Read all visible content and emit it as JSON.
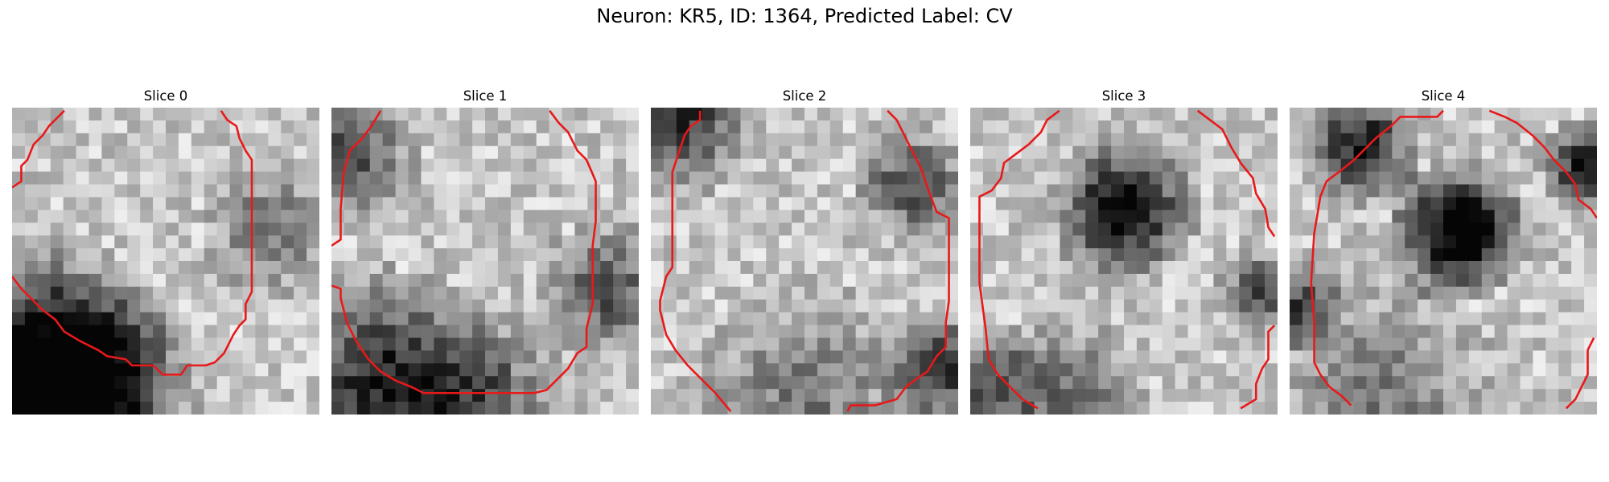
{
  "figure": {
    "title": "Neuron: KR5, ID: 1364, Predicted Label: CV"
  },
  "colors": {
    "contour": "#e8191a",
    "colormap": "grayscale"
  },
  "slices": [
    {
      "title": "Slice 0",
      "grid_size": 24,
      "seed": 11,
      "dark_regions": [
        [
          0.08,
          0.85,
          0.22,
          0.75
        ],
        [
          0.25,
          0.92,
          0.18,
          0.6
        ],
        [
          0.85,
          0.4,
          0.12,
          0.35
        ]
      ],
      "contour": [
        [
          [
            0.0,
            0.26
          ],
          [
            0.03,
            0.24
          ],
          [
            0.03,
            0.19
          ],
          [
            0.05,
            0.17
          ],
          [
            0.07,
            0.12
          ],
          [
            0.1,
            0.09
          ],
          [
            0.12,
            0.06
          ],
          [
            0.15,
            0.03
          ],
          [
            0.17,
            0.01
          ]
        ],
        [
          [
            0.68,
            0.01
          ],
          [
            0.7,
            0.04
          ],
          [
            0.73,
            0.06
          ],
          [
            0.74,
            0.1
          ],
          [
            0.76,
            0.14
          ],
          [
            0.78,
            0.17
          ],
          [
            0.78,
            0.26
          ],
          [
            0.78,
            0.6
          ],
          [
            0.76,
            0.64
          ],
          [
            0.76,
            0.69
          ],
          [
            0.74,
            0.71
          ],
          [
            0.72,
            0.74
          ],
          [
            0.69,
            0.8
          ],
          [
            0.66,
            0.83
          ],
          [
            0.63,
            0.84
          ],
          [
            0.57,
            0.84
          ],
          [
            0.55,
            0.87
          ],
          [
            0.49,
            0.87
          ],
          [
            0.46,
            0.84
          ],
          [
            0.39,
            0.84
          ],
          [
            0.37,
            0.82
          ],
          [
            0.31,
            0.81
          ],
          [
            0.28,
            0.79
          ],
          [
            0.22,
            0.76
          ],
          [
            0.17,
            0.73
          ],
          [
            0.14,
            0.69
          ],
          [
            0.1,
            0.66
          ],
          [
            0.06,
            0.62
          ],
          [
            0.03,
            0.59
          ],
          [
            0.0,
            0.55
          ]
        ]
      ]
    },
    {
      "title": "Slice 1",
      "grid_size": 24,
      "seed": 23,
      "dark_regions": [
        [
          0.05,
          0.15,
          0.12,
          0.5
        ],
        [
          0.2,
          0.92,
          0.2,
          0.7
        ],
        [
          0.9,
          0.6,
          0.12,
          0.45
        ],
        [
          0.55,
          0.95,
          0.15,
          0.3
        ]
      ],
      "contour": [
        [
          [
            0.0,
            0.45
          ],
          [
            0.03,
            0.43
          ],
          [
            0.03,
            0.33
          ],
          [
            0.04,
            0.21
          ],
          [
            0.06,
            0.14
          ],
          [
            0.1,
            0.1
          ],
          [
            0.13,
            0.06
          ],
          [
            0.16,
            0.01
          ]
        ],
        [
          [
            0.71,
            0.01
          ],
          [
            0.74,
            0.05
          ],
          [
            0.77,
            0.08
          ],
          [
            0.8,
            0.14
          ],
          [
            0.83,
            0.17
          ],
          [
            0.86,
            0.24
          ],
          [
            0.86,
            0.37
          ],
          [
            0.85,
            0.45
          ],
          [
            0.85,
            0.64
          ],
          [
            0.83,
            0.72
          ],
          [
            0.83,
            0.78
          ],
          [
            0.8,
            0.8
          ],
          [
            0.77,
            0.85
          ],
          [
            0.73,
            0.89
          ],
          [
            0.7,
            0.92
          ],
          [
            0.66,
            0.93
          ],
          [
            0.3,
            0.93
          ],
          [
            0.26,
            0.91
          ],
          [
            0.21,
            0.89
          ],
          [
            0.16,
            0.86
          ],
          [
            0.12,
            0.82
          ],
          [
            0.08,
            0.76
          ],
          [
            0.05,
            0.7
          ],
          [
            0.03,
            0.62
          ],
          [
            0.03,
            0.59
          ],
          [
            0.0,
            0.58
          ]
        ]
      ]
    },
    {
      "title": "Slice 2",
      "grid_size": 24,
      "seed": 37,
      "dark_regions": [
        [
          0.1,
          0.05,
          0.12,
          0.6
        ],
        [
          0.85,
          0.25,
          0.1,
          0.5
        ],
        [
          0.95,
          0.85,
          0.1,
          0.6
        ],
        [
          0.5,
          0.95,
          0.2,
          0.3
        ]
      ],
      "contour": [
        [
          [
            0.16,
            0.01
          ],
          [
            0.16,
            0.04
          ],
          [
            0.13,
            0.06
          ],
          [
            0.11,
            0.09
          ],
          [
            0.07,
            0.21
          ],
          [
            0.07,
            0.52
          ],
          [
            0.05,
            0.55
          ],
          [
            0.03,
            0.63
          ],
          [
            0.03,
            0.66
          ],
          [
            0.05,
            0.74
          ],
          [
            0.08,
            0.79
          ],
          [
            0.12,
            0.84
          ],
          [
            0.16,
            0.88
          ],
          [
            0.21,
            0.93
          ],
          [
            0.26,
            0.99
          ]
        ],
        [
          [
            0.77,
            0.01
          ],
          [
            0.8,
            0.04
          ],
          [
            0.82,
            0.08
          ],
          [
            0.85,
            0.14
          ],
          [
            0.88,
            0.2
          ],
          [
            0.9,
            0.26
          ],
          [
            0.93,
            0.34
          ],
          [
            0.97,
            0.36
          ],
          [
            0.97,
            0.63
          ],
          [
            0.96,
            0.7
          ],
          [
            0.96,
            0.78
          ],
          [
            0.93,
            0.81
          ],
          [
            0.9,
            0.86
          ],
          [
            0.87,
            0.88
          ],
          [
            0.83,
            0.91
          ],
          [
            0.8,
            0.95
          ],
          [
            0.73,
            0.97
          ],
          [
            0.65,
            0.97
          ],
          [
            0.64,
            0.99
          ]
        ]
      ]
    },
    {
      "title": "Slice 3",
      "grid_size": 24,
      "seed": 53,
      "dark_regions": [
        [
          0.5,
          0.33,
          0.12,
          0.85
        ],
        [
          0.05,
          0.9,
          0.1,
          0.4
        ],
        [
          0.95,
          0.6,
          0.08,
          0.5
        ],
        [
          0.3,
          0.95,
          0.15,
          0.35
        ]
      ],
      "contour": [
        [
          [
            0.29,
            0.01
          ],
          [
            0.25,
            0.04
          ],
          [
            0.23,
            0.08
          ],
          [
            0.19,
            0.12
          ],
          [
            0.15,
            0.15
          ],
          [
            0.11,
            0.18
          ],
          [
            0.1,
            0.23
          ],
          [
            0.07,
            0.27
          ],
          [
            0.03,
            0.29
          ],
          [
            0.03,
            0.57
          ],
          [
            0.05,
            0.72
          ],
          [
            0.06,
            0.82
          ],
          [
            0.09,
            0.87
          ],
          [
            0.13,
            0.91
          ],
          [
            0.17,
            0.95
          ],
          [
            0.22,
            0.98
          ]
        ],
        [
          [
            0.74,
            0.01
          ],
          [
            0.78,
            0.04
          ],
          [
            0.82,
            0.07
          ],
          [
            0.85,
            0.13
          ],
          [
            0.88,
            0.18
          ],
          [
            0.92,
            0.23
          ],
          [
            0.93,
            0.28
          ],
          [
            0.96,
            0.33
          ],
          [
            0.97,
            0.39
          ],
          [
            0.99,
            0.42
          ]
        ],
        [
          [
            0.99,
            0.71
          ],
          [
            0.97,
            0.73
          ],
          [
            0.97,
            0.82
          ],
          [
            0.95,
            0.85
          ],
          [
            0.93,
            0.9
          ],
          [
            0.93,
            0.95
          ],
          [
            0.88,
            0.98
          ]
        ]
      ]
    },
    {
      "title": "Slice 4",
      "grid_size": 24,
      "seed": 71,
      "dark_regions": [
        [
          0.55,
          0.4,
          0.12,
          0.9
        ],
        [
          0.23,
          0.12,
          0.1,
          0.7
        ],
        [
          0.97,
          0.2,
          0.08,
          0.75
        ],
        [
          0.03,
          0.65,
          0.08,
          0.55
        ],
        [
          0.3,
          0.95,
          0.2,
          0.3
        ]
      ],
      "contour": [
        [
          [
            0.2,
            0.97
          ],
          [
            0.17,
            0.94
          ],
          [
            0.13,
            0.91
          ],
          [
            0.1,
            0.87
          ],
          [
            0.08,
            0.83
          ],
          [
            0.08,
            0.7
          ],
          [
            0.07,
            0.57
          ],
          [
            0.08,
            0.41
          ],
          [
            0.1,
            0.29
          ],
          [
            0.12,
            0.24
          ],
          [
            0.16,
            0.21
          ],
          [
            0.21,
            0.17
          ],
          [
            0.24,
            0.14
          ],
          [
            0.28,
            0.1
          ],
          [
            0.33,
            0.06
          ],
          [
            0.36,
            0.03
          ],
          [
            0.48,
            0.03
          ],
          [
            0.5,
            0.01
          ]
        ],
        [
          [
            0.65,
            0.01
          ],
          [
            0.7,
            0.03
          ],
          [
            0.74,
            0.05
          ],
          [
            0.79,
            0.09
          ],
          [
            0.83,
            0.13
          ],
          [
            0.86,
            0.17
          ],
          [
            0.9,
            0.21
          ],
          [
            0.93,
            0.25
          ],
          [
            0.94,
            0.3
          ],
          [
            0.98,
            0.33
          ],
          [
            1.0,
            0.36
          ]
        ],
        [
          [
            0.99,
            0.75
          ],
          [
            0.97,
            0.79
          ],
          [
            0.97,
            0.87
          ],
          [
            0.95,
            0.91
          ],
          [
            0.93,
            0.95
          ],
          [
            0.9,
            0.98
          ]
        ]
      ]
    }
  ]
}
